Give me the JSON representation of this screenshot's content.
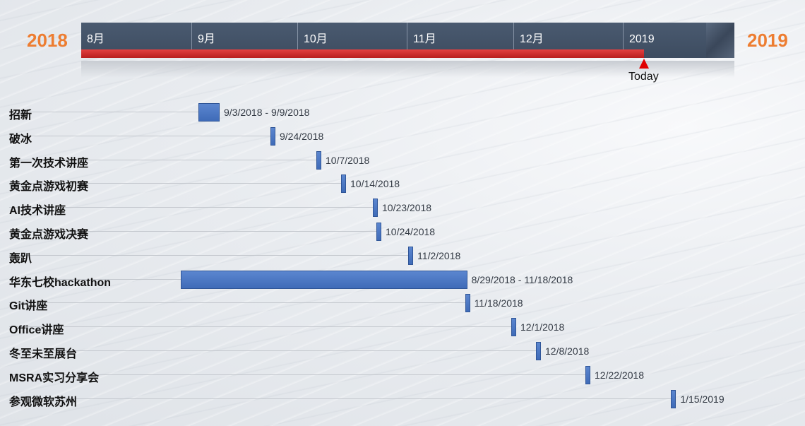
{
  "chart_data": {
    "type": "gantt",
    "start_year_label": "2018",
    "end_year_label": "2019",
    "timescale": {
      "months": [
        "8月",
        "9月",
        "10月",
        "11月",
        "12月",
        "2019"
      ],
      "range": [
        "2018-08-01",
        "2019-01-31"
      ]
    },
    "today": {
      "label": "Today",
      "date": "2019-01-01"
    },
    "colors": {
      "year": "#ed7d31",
      "bar": "#4472c4",
      "progress": "#d32626",
      "today": "#e00000"
    },
    "tasks": [
      {
        "name": "招新",
        "start": "2018-09-03",
        "end": "2018-09-09",
        "date_label": "9/3/2018 - 9/9/2018"
      },
      {
        "name": "破冰",
        "start": "2018-09-24",
        "end": "2018-09-24",
        "date_label": "9/24/2018"
      },
      {
        "name": "第一次技术讲座",
        "start": "2018-10-07",
        "end": "2018-10-07",
        "date_label": "10/7/2018"
      },
      {
        "name": "黄金点游戏初赛",
        "start": "2018-10-14",
        "end": "2018-10-14",
        "date_label": "10/14/2018"
      },
      {
        "name": "AI技术讲座",
        "start": "2018-10-23",
        "end": "2018-10-23",
        "date_label": "10/23/2018"
      },
      {
        "name": "黄金点游戏决赛",
        "start": "2018-10-24",
        "end": "2018-10-24",
        "date_label": "10/24/2018"
      },
      {
        "name": "轰趴",
        "start": "2018-11-02",
        "end": "2018-11-02",
        "date_label": "11/2/2018"
      },
      {
        "name": "华东七校hackathon",
        "start": "2018-08-29",
        "end": "2018-11-18",
        "date_label": "8/29/2018 - 11/18/2018"
      },
      {
        "name": "Git讲座",
        "start": "2018-11-18",
        "end": "2018-11-18",
        "date_label": "11/18/2018"
      },
      {
        "name": "Office讲座",
        "start": "2018-12-01",
        "end": "2018-12-01",
        "date_label": "12/1/2018"
      },
      {
        "name": "冬至未至展台",
        "start": "2018-12-08",
        "end": "2018-12-08",
        "date_label": "12/8/2018"
      },
      {
        "name": "MSRA实习分享会",
        "start": "2018-12-22",
        "end": "2018-12-22",
        "date_label": "12/22/2018"
      },
      {
        "name": "参观微软苏州",
        "start": "2019-01-15",
        "end": "2019-01-15",
        "date_label": "1/15/2019"
      }
    ]
  }
}
